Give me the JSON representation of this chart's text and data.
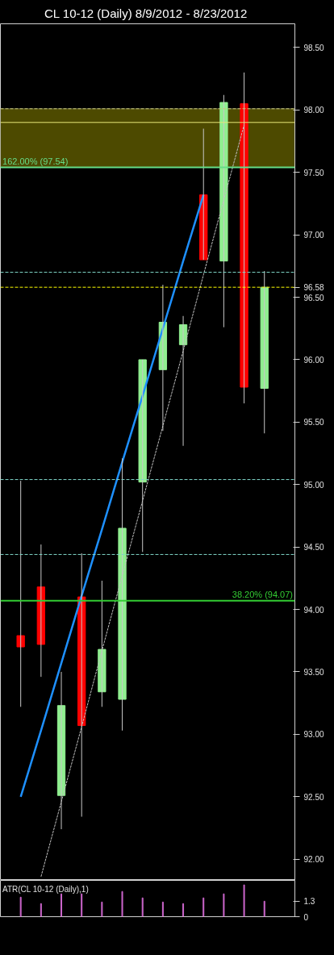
{
  "chart_data": [
    {
      "type": "candlestick",
      "title": "CL 10-12 (Daily)  8/9/2012 - 8/23/2012",
      "categories": [
        null,
        null,
        null,
        null,
        null,
        null,
        null,
        null,
        null,
        null,
        null,
        null,
        null
      ],
      "ohlc": [
        [
          93.79,
          95.03,
          93.22,
          93.7
        ],
        [
          94.18,
          94.52,
          93.46,
          93.72
        ],
        [
          92.51,
          93.5,
          92.24,
          93.23
        ],
        [
          94.1,
          94.45,
          92.34,
          93.07
        ],
        [
          93.34,
          94.23,
          93.22,
          93.68
        ],
        [
          93.28,
          95.21,
          93.03,
          94.65
        ],
        [
          95.02,
          96.0,
          94.46,
          96.0
        ],
        [
          95.92,
          96.6,
          95.43,
          96.3
        ],
        [
          96.12,
          96.35,
          95.31,
          96.28
        ],
        [
          97.32,
          97.85,
          96.8,
          96.8
        ],
        [
          96.79,
          98.12,
          96.26,
          98.06
        ],
        [
          98.05,
          98.3,
          95.65,
          95.78
        ],
        [
          95.77,
          96.71,
          95.41,
          96.58
        ]
      ],
      "colors": [
        "#ff0000",
        "#ff0000",
        "#90ee90",
        "#ff0000",
        "#90ee90",
        "#90ee90",
        "#90ee90",
        "#90ee90",
        "#90ee90",
        "#ff0000",
        "#90ee90",
        "#ff0000",
        "#90ee90"
      ],
      "series": [
        {
          "type": "line",
          "values": [
            92.5,
            93.03,
            93.57,
            94.11,
            94.64,
            95.18,
            95.71,
            96.25,
            96.79,
            97.32,
            null,
            null,
            null
          ],
          "color": "#1e90ff",
          "line_style": "solid"
        },
        {
          "type": "line",
          "values": [
            null,
            91.86,
            92.46,
            93.06,
            93.67,
            94.27,
            94.87,
            95.47,
            96.07,
            96.68,
            97.28,
            97.88,
            null
          ],
          "color": "#c0c0c0",
          "line_style": "dotted"
        }
      ],
      "ylim": [
        91.83,
        98.69
      ],
      "yticks": [
        {
          "value": 92,
          "label": "92.00"
        },
        {
          "value": 92.5,
          "label": "92.50"
        },
        {
          "value": 93,
          "label": "93.00"
        },
        {
          "value": 93.5,
          "label": "93.50"
        },
        {
          "value": 94,
          "label": "94.00"
        },
        {
          "value": 94.5,
          "label": "94.50"
        },
        {
          "value": 95,
          "label": "95.00"
        },
        {
          "value": 95.5,
          "label": "95.50"
        },
        {
          "value": 96,
          "label": "96.00"
        },
        {
          "value": 96.5,
          "label": "96.50"
        },
        {
          "value": 96.58,
          "label": "96.58"
        },
        {
          "value": 97,
          "label": "97.00"
        },
        {
          "value": 97.5,
          "label": "97.50"
        },
        {
          "value": 98,
          "label": "98.00"
        },
        {
          "value": 98.5,
          "label": "98.50"
        }
      ],
      "bands": [
        {
          "axis": "y",
          "from": 97.54,
          "to": 98.01,
          "color": "#4d4a00"
        }
      ],
      "ref_lines": [
        {
          "axis": "y",
          "value": 98.01,
          "color": "#c8c87a",
          "line_style": "dashed"
        },
        {
          "axis": "y",
          "value": 97.9,
          "color": "#e6e67a",
          "line_style": "solid"
        },
        {
          "axis": "y",
          "value": 97.54,
          "label": "162.00% (97.54)",
          "color": "#66dd88",
          "line_style": "solid"
        },
        {
          "axis": "y",
          "value": 96.7,
          "color": "#7fd6c8",
          "line_style": "dashed"
        },
        {
          "axis": "y",
          "value": 96.58,
          "color": "#ffff00",
          "line_style": "dashed"
        },
        {
          "axis": "y",
          "value": 95.04,
          "color": "#7fd6c8",
          "line_style": "dashed"
        },
        {
          "axis": "y",
          "value": 94.44,
          "color": "#7fd6c8",
          "line_style": "dashed"
        },
        {
          "axis": "y",
          "value": 94.07,
          "label": "38.20% (94.07)",
          "color": "#33cc33",
          "line_style": "solid"
        }
      ],
      "grid": false,
      "tick_labels": "y"
    },
    {
      "type": "bar",
      "title": "ATR(CL 10-12 (Daily),1)",
      "categories": [
        null,
        null,
        null,
        null,
        null,
        null,
        null,
        null,
        null,
        null,
        null,
        null,
        null
      ],
      "values": [
        1.64,
        1.1,
        1.92,
        1.92,
        1.23,
        2.12,
        1.58,
        1.23,
        1.1,
        1.58,
        1.92,
        2.67,
        1.3
      ],
      "color": "#cc66cc",
      "ylim": [
        0,
        3.05
      ],
      "yticks": [
        0,
        {
          "value": 1.3,
          "label": "1.3"
        }
      ],
      "grid": false,
      "tick_labels": "y"
    }
  ]
}
